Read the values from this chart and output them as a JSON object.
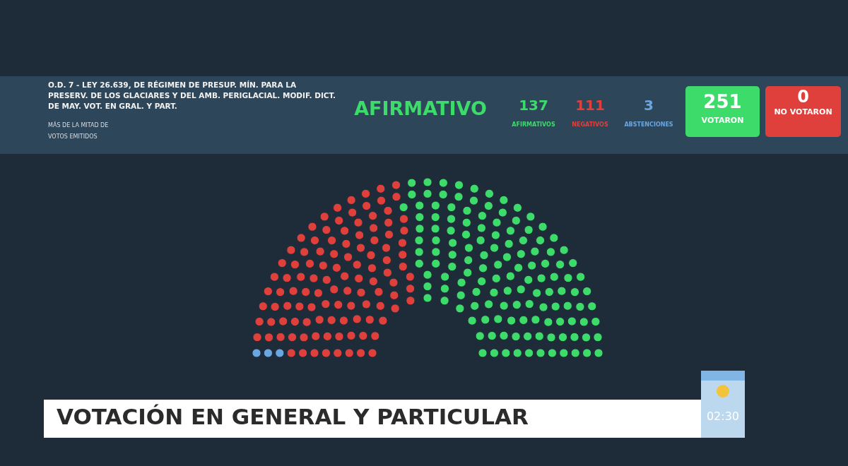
{
  "chart_data": {
    "type": "other",
    "title": "O.D. 7 - LEY 26.639, DE RÉGIMEN DE PRESUP. MÍN. PARA LA PRESERV. DE LOS GLACIARES Y DEL AMB. PERIGLACIAL. MODIF. DICT. DE MAY. VOT. EN GRAL. Y PART.",
    "subtitle": "MÁS DE LA MITAD DE VOTOS EMITIDOS",
    "categories": [
      "AFIRMATIVOS",
      "NEGATIVOS",
      "ABSTENCIONES"
    ],
    "values": [
      137,
      111,
      3
    ],
    "data_labels": true,
    "colors": [
      "#3ddc6a",
      "#e0403c",
      "#6aa6e0"
    ],
    "annotations": [
      "AFIRMATIVO",
      "251",
      "VOTARON",
      "0",
      "NO VOTARON",
      "VOTACIÓN EN GENERAL Y PARTICULAR",
      "02:30"
    ]
  }
}
